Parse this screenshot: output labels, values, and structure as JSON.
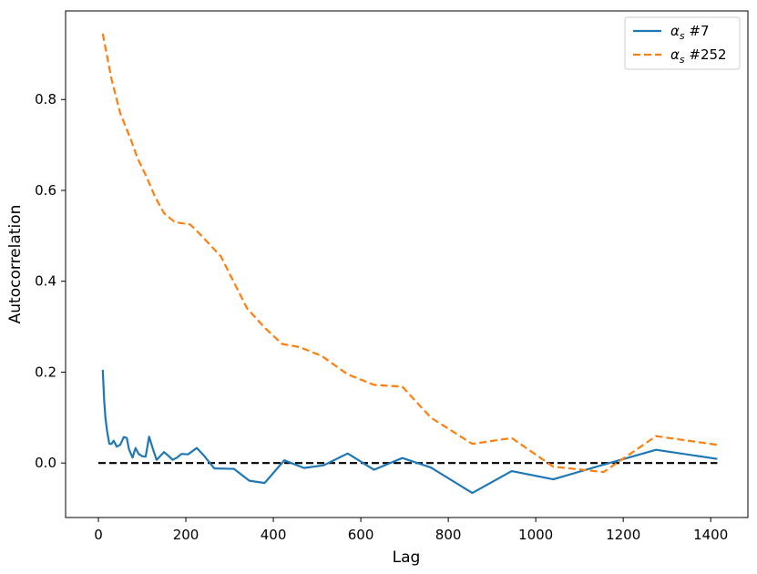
{
  "chart_data": {
    "type": "line",
    "title": "",
    "xlabel": "Lag",
    "ylabel": "Autocorrelation",
    "xlim": [
      -75,
      1485
    ],
    "ylim": [
      -0.12,
      0.995
    ],
    "x_ticks": [
      0,
      200,
      400,
      600,
      800,
      1000,
      1200,
      1400
    ],
    "y_ticks": [
      0.0,
      0.2,
      0.4,
      0.6,
      0.8
    ],
    "x_tick_labels": [
      "0",
      "200",
      "400",
      "600",
      "800",
      "1000",
      "1200",
      "1400"
    ],
    "y_tick_labels": [
      "0.0",
      "0.2",
      "0.4",
      "0.6",
      "0.8"
    ],
    "grid": false,
    "legend_position": "top-right",
    "series": [
      {
        "name": "#7",
        "name_symbol": "α",
        "name_subscript": "s",
        "color": "#1f77b4",
        "linestyle": "solid",
        "x": [
          10,
          13,
          16,
          20,
          25,
          30,
          35,
          42,
          50,
          58,
          65,
          70,
          78,
          85,
          92,
          100,
          108,
          116,
          125,
          133,
          142,
          150,
          160,
          170,
          180,
          190,
          205,
          225,
          240,
          265,
          310,
          345,
          380,
          425,
          470,
          515,
          570,
          630,
          695,
          760,
          855,
          945,
          1040,
          1150,
          1275,
          1415
        ],
        "y": [
          0.205,
          0.14,
          0.1,
          0.07,
          0.042,
          0.042,
          0.049,
          0.036,
          0.04,
          0.057,
          0.055,
          0.03,
          0.012,
          0.033,
          0.02,
          0.015,
          0.014,
          0.058,
          0.03,
          0.007,
          0.016,
          0.024,
          0.016,
          0.007,
          0.012,
          0.02,
          0.019,
          0.033,
          0.018,
          -0.012,
          -0.013,
          -0.039,
          -0.044,
          0.006,
          -0.011,
          -0.005,
          0.021,
          -0.015,
          0.011,
          -0.01,
          -0.066,
          -0.018,
          -0.036,
          -0.005,
          0.029,
          0.009
        ]
      },
      {
        "name": "#252",
        "name_symbol": "α",
        "name_subscript": "s",
        "color": "#ff7f0e",
        "linestyle": "dashed",
        "x": [
          10,
          30,
          50,
          75,
          90,
          110,
          130,
          150,
          175,
          210,
          230,
          280,
          340,
          380,
          420,
          460,
          510,
          570,
          630,
          695,
          760,
          855,
          945,
          1040,
          1155,
          1275,
          1415
        ],
        "y": [
          0.945,
          0.845,
          0.77,
          0.71,
          0.67,
          0.63,
          0.585,
          0.55,
          0.53,
          0.525,
          0.506,
          0.455,
          0.34,
          0.298,
          0.262,
          0.255,
          0.236,
          0.195,
          0.172,
          0.168,
          0.1,
          0.042,
          0.055,
          -0.008,
          -0.02,
          0.059,
          0.04
        ]
      },
      {
        "name": "",
        "color": "#000000",
        "linestyle": "dashed",
        "x": [
          0,
          1415
        ],
        "y": [
          0.0,
          0.0
        ]
      }
    ]
  }
}
